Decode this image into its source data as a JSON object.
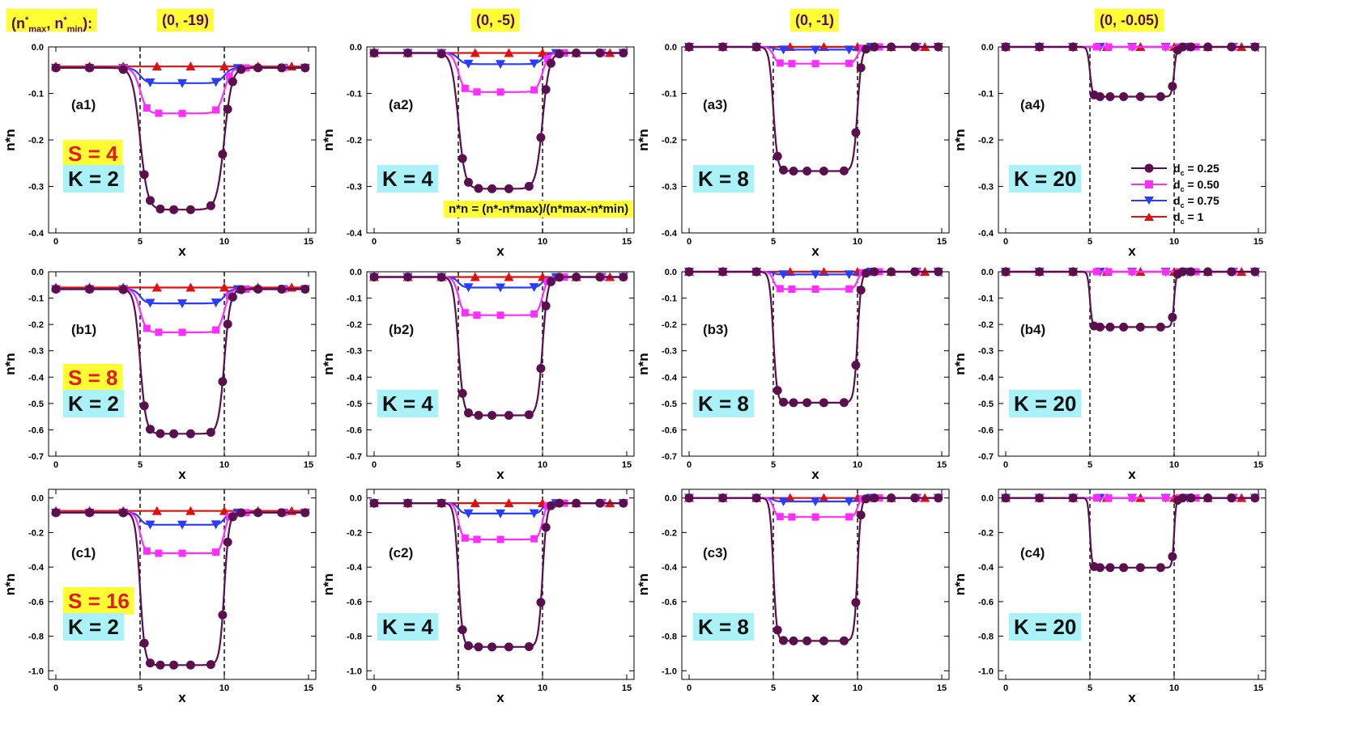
{
  "header": {
    "label_prefix": "(n",
    "label_sub_max": "max",
    "label_sub_min": "min",
    "label_text": "(n*max, n*min):",
    "columns": [
      "(0, -19)",
      "(0, -5)",
      "(0, -1)",
      "(0, -0.05)"
    ]
  },
  "rows": [
    {
      "S": "S = 4",
      "ids": [
        "(a1)",
        "(a2)",
        "(a3)",
        "(a4)"
      ]
    },
    {
      "S": "S = 8",
      "ids": [
        "(b1)",
        "(b2)",
        "(b3)",
        "(b4)"
      ]
    },
    {
      "S": "S = 16",
      "ids": [
        "(c1)",
        "(c2)",
        "(c3)",
        "(c4)"
      ]
    }
  ],
  "k_labels": [
    "K = 2",
    "K = 4",
    "K = 8",
    "K = 20"
  ],
  "formula": "n*n = (n*-n*max)/(n*max-n*min)",
  "legend": [
    {
      "label": "d",
      "sub": "c",
      "value": " = 0.25",
      "color": "#5b0f4f",
      "marker": "circle"
    },
    {
      "label": "d",
      "sub": "c",
      "value": " = 0.50",
      "color": "#ff2eff",
      "marker": "square"
    },
    {
      "label": "d",
      "sub": "c",
      "value": " = 0.75",
      "color": "#2a3cff",
      "marker": "triangle-down"
    },
    {
      "label": "d",
      "sub": "c",
      "value": " = 1",
      "color": "#e01010",
      "marker": "triangle-up"
    }
  ],
  "chart_data": {
    "type": "line",
    "xlabel": "x",
    "ylabel": "n*n",
    "xlim": [
      0,
      15
    ],
    "xticks": [
      0,
      5,
      10,
      15
    ],
    "dashed_verticals": [
      5,
      10
    ],
    "rows": [
      {
        "ylim": [
          -0.4,
          0.0
        ],
        "yticks": [
          0.0,
          -0.1,
          -0.2,
          -0.3,
          -0.4
        ]
      },
      {
        "ylim": [
          -0.7,
          0.0
        ],
        "yticks": [
          0.0,
          -0.1,
          -0.2,
          -0.3,
          -0.4,
          -0.5,
          -0.6,
          -0.7
        ]
      },
      {
        "ylim": [
          -1.05,
          0.05
        ],
        "yticks": [
          0.0,
          -0.2,
          -0.4,
          -0.6,
          -0.8,
          -1.0
        ]
      }
    ],
    "panels": [
      {
        "id": "(a1)",
        "series": {
          "0.25": {
            "base": -0.045,
            "min": -0.35,
            "w": 0.45
          },
          "0.50": {
            "base": -0.045,
            "min": -0.143,
            "w": 0.4
          },
          "0.75": {
            "base": -0.045,
            "min": -0.078,
            "w": 0.4
          },
          "1": {
            "base": -0.042,
            "min": -0.042,
            "w": 0.4
          }
        }
      },
      {
        "id": "(a2)",
        "series": {
          "0.25": {
            "base": -0.013,
            "min": -0.305,
            "w": 0.4
          },
          "0.50": {
            "base": -0.013,
            "min": -0.097,
            "w": 0.35
          },
          "0.75": {
            "base": -0.013,
            "min": -0.037,
            "w": 0.35
          },
          "1": {
            "base": -0.013,
            "min": -0.013,
            "w": 0.35
          }
        }
      },
      {
        "id": "(a3)",
        "series": {
          "0.25": {
            "base": 0.0,
            "min": -0.267,
            "w": 0.25
          },
          "0.50": {
            "base": 0.0,
            "min": -0.036,
            "w": 0.25
          },
          "0.75": {
            "base": 0.0,
            "min": -0.006,
            "w": 0.25
          },
          "1": {
            "base": 0.0,
            "min": 0.0,
            "w": 0.25
          }
        }
      },
      {
        "id": "(a4)",
        "series": {
          "0.25": {
            "base": 0.0,
            "min": -0.107,
            "w": 0.15
          },
          "0.50": {
            "base": 0.0,
            "min": 0.0,
            "w": 0.15
          },
          "0.75": {
            "base": 0.0,
            "min": 0.0,
            "w": 0.15
          },
          "1": {
            "base": 0.0,
            "min": 0.0,
            "w": 0.15
          }
        }
      },
      {
        "id": "(b1)",
        "series": {
          "0.25": {
            "base": -0.066,
            "min": -0.615,
            "w": 0.35
          },
          "0.50": {
            "base": -0.066,
            "min": -0.23,
            "w": 0.35
          },
          "0.75": {
            "base": -0.066,
            "min": -0.12,
            "w": 0.35
          },
          "1": {
            "base": -0.06,
            "min": -0.06,
            "w": 0.35
          }
        }
      },
      {
        "id": "(b2)",
        "series": {
          "0.25": {
            "base": -0.02,
            "min": -0.545,
            "w": 0.3
          },
          "0.50": {
            "base": -0.02,
            "min": -0.165,
            "w": 0.3
          },
          "0.75": {
            "base": -0.02,
            "min": -0.06,
            "w": 0.3
          },
          "1": {
            "base": -0.02,
            "min": -0.02,
            "w": 0.3
          }
        }
      },
      {
        "id": "(b3)",
        "series": {
          "0.25": {
            "base": 0.0,
            "min": -0.497,
            "w": 0.22
          },
          "0.50": {
            "base": 0.0,
            "min": -0.066,
            "w": 0.22
          },
          "0.75": {
            "base": 0.0,
            "min": -0.01,
            "w": 0.22
          },
          "1": {
            "base": 0.0,
            "min": 0.0,
            "w": 0.22
          }
        }
      },
      {
        "id": "(b4)",
        "series": {
          "0.25": {
            "base": 0.0,
            "min": -0.21,
            "w": 0.13
          },
          "0.50": {
            "base": 0.0,
            "min": 0.0,
            "w": 0.13
          },
          "0.75": {
            "base": 0.0,
            "min": 0.0,
            "w": 0.13
          },
          "1": {
            "base": 0.0,
            "min": 0.0,
            "w": 0.13
          }
        }
      },
      {
        "id": "(c1)",
        "series": {
          "0.25": {
            "base": -0.085,
            "min": -0.967,
            "w": 0.28
          },
          "0.50": {
            "base": -0.085,
            "min": -0.32,
            "w": 0.28
          },
          "0.75": {
            "base": -0.085,
            "min": -0.155,
            "w": 0.28
          },
          "1": {
            "base": -0.075,
            "min": -0.075,
            "w": 0.28
          }
        }
      },
      {
        "id": "(c2)",
        "series": {
          "0.25": {
            "base": -0.03,
            "min": -0.862,
            "w": 0.25
          },
          "0.50": {
            "base": -0.03,
            "min": -0.24,
            "w": 0.25
          },
          "0.75": {
            "base": -0.03,
            "min": -0.09,
            "w": 0.25
          },
          "1": {
            "base": -0.03,
            "min": -0.03,
            "w": 0.25
          }
        }
      },
      {
        "id": "(c3)",
        "series": {
          "0.25": {
            "base": 0.0,
            "min": -0.827,
            "w": 0.2
          },
          "0.50": {
            "base": 0.0,
            "min": -0.11,
            "w": 0.2
          },
          "0.75": {
            "base": 0.0,
            "min": -0.02,
            "w": 0.2
          },
          "1": {
            "base": 0.0,
            "min": 0.0,
            "w": 0.2
          }
        }
      },
      {
        "id": "(c4)",
        "series": {
          "0.25": {
            "base": 0.0,
            "min": -0.403,
            "w": 0.12
          },
          "0.50": {
            "base": 0.0,
            "min": 0.0,
            "w": 0.12
          },
          "0.75": {
            "base": 0.0,
            "min": 0.0,
            "w": 0.12
          },
          "1": {
            "base": 0.0,
            "min": 0.0,
            "w": 0.12
          }
        }
      }
    ]
  }
}
